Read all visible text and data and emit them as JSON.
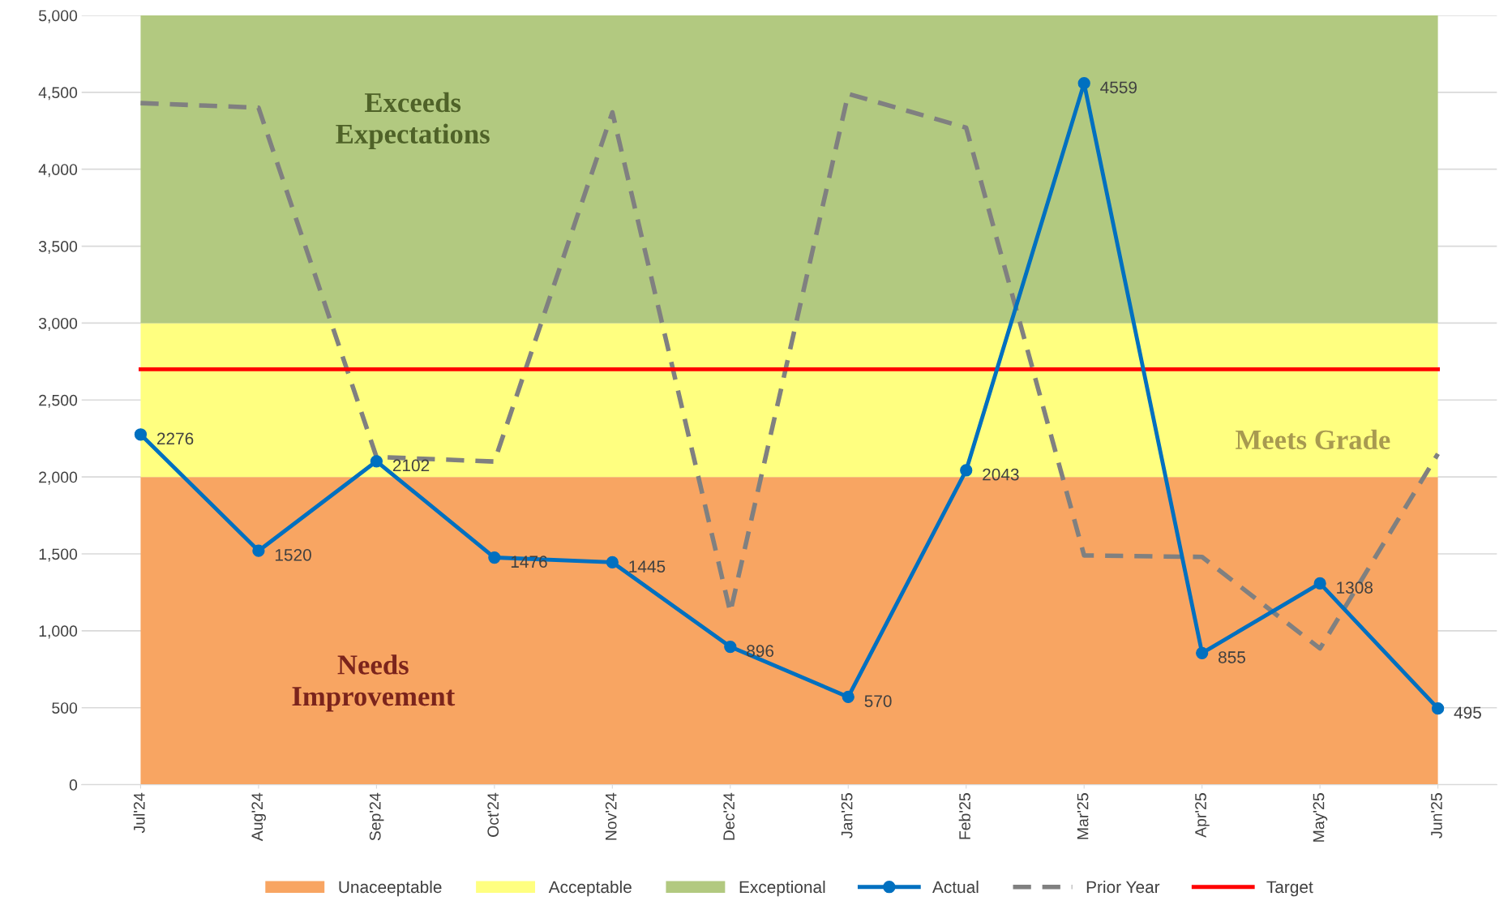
{
  "chart_data": {
    "type": "line",
    "categories": [
      "Jul'24",
      "Aug'24",
      "Sep'24",
      "Oct'24",
      "Nov'24",
      "Dec'24",
      "Jan'25",
      "Feb'25",
      "Mar'25",
      "Apr'25",
      "May'25",
      "Jun'25"
    ],
    "series": [
      {
        "name": "Actual",
        "color": "#0070c0",
        "marker": "circle",
        "line_style": "solid",
        "values": [
          2276,
          1520,
          2102,
          1476,
          1445,
          896,
          570,
          2043,
          4559,
          855,
          1308,
          495
        ],
        "value_labels": [
          "2276",
          "1520",
          "2102",
          "1476",
          "1445",
          "896",
          "570",
          "2043",
          "4559",
          "855",
          "1308",
          "495"
        ]
      },
      {
        "name": "Prior Year",
        "color": "#808080",
        "marker": "none",
        "line_style": "dashed",
        "values": [
          4430,
          4400,
          2130,
          2100,
          4370,
          1120,
          4490,
          4270,
          1490,
          1480,
          885,
          2150
        ]
      }
    ],
    "bands": [
      {
        "axis": "y",
        "from": 0,
        "to": 2000,
        "label": "Unaceeptable",
        "color": "#f8a562"
      },
      {
        "axis": "y",
        "from": 2000,
        "to": 3000,
        "label": "Acceptable",
        "color": "#ffff80"
      },
      {
        "axis": "y",
        "from": 3000,
        "to": 5000,
        "label": "Exceptional",
        "color": "#b2c980"
      }
    ],
    "ref_lines": [
      {
        "axis": "y",
        "value": 2700,
        "label": "Target",
        "color": "#ff0000",
        "line_style": "solid"
      }
    ],
    "annotations": [
      "Exceeds\nExpectations",
      "Meets Grade",
      "Needs\nImprovement"
    ],
    "ylim": [
      0,
      5000
    ],
    "yticks": [
      {
        "value": 0,
        "label": "0"
      },
      {
        "value": 500,
        "label": "500"
      },
      {
        "value": 1000,
        "label": "1,000"
      },
      {
        "value": 1500,
        "label": "1,500"
      },
      {
        "value": 2000,
        "label": "2,000"
      },
      {
        "value": 2500,
        "label": "2,500"
      },
      {
        "value": 3000,
        "label": "3,000"
      },
      {
        "value": 3500,
        "label": "3,500"
      },
      {
        "value": 4000,
        "label": "4,000"
      },
      {
        "value": 4500,
        "label": "4,500"
      },
      {
        "value": 5000,
        "label": "5,000"
      }
    ],
    "grid": "y",
    "legend": "bottom"
  }
}
